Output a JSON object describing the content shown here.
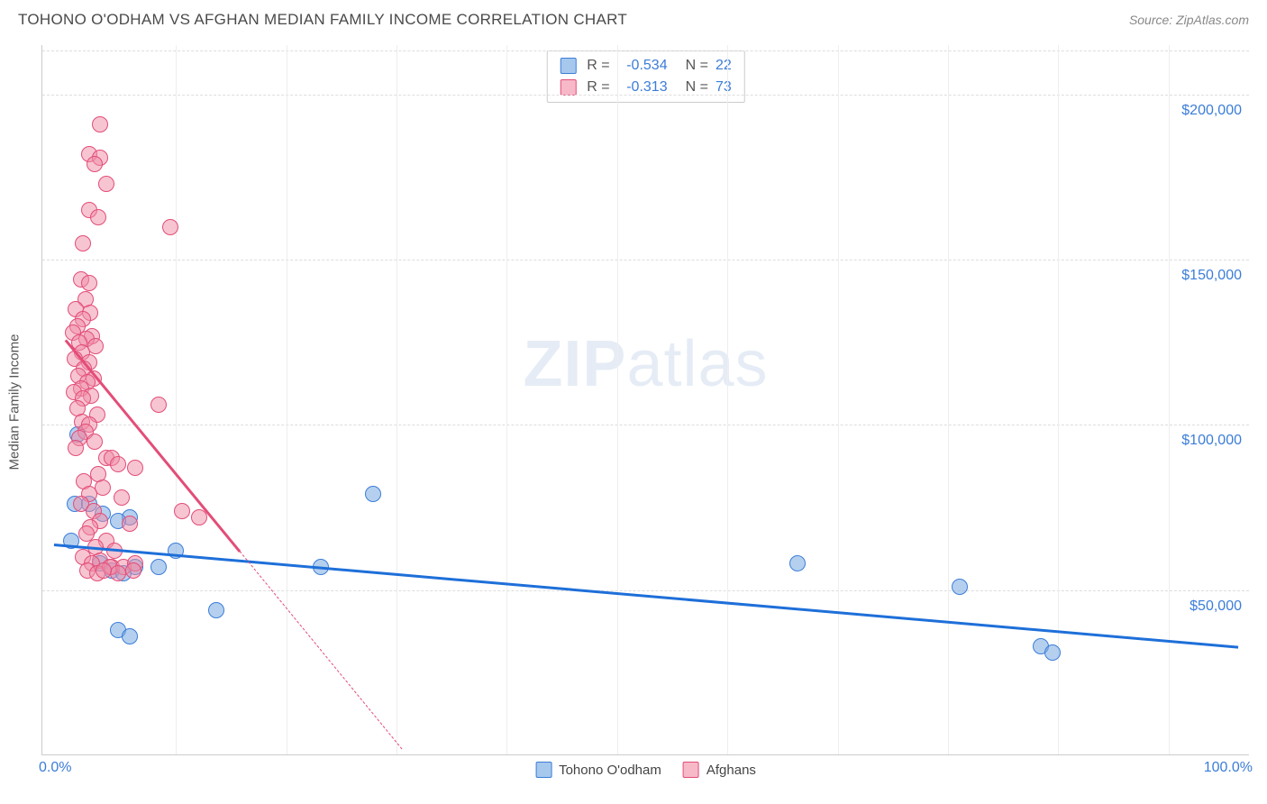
{
  "title": "TOHONO O'ODHAM VS AFGHAN MEDIAN FAMILY INCOME CORRELATION CHART",
  "source": "Source: ZipAtlas.com",
  "watermark": {
    "bold": "ZIP",
    "light": "atlas"
  },
  "axis": {
    "y_title": "Median Family Income",
    "x_min_label": "0.0%",
    "x_max_label": "100.0%",
    "y_ticks": [
      {
        "label": "$50,000",
        "value": 50000
      },
      {
        "label": "$100,000",
        "value": 100000
      },
      {
        "label": "$150,000",
        "value": 150000
      },
      {
        "label": "$200,000",
        "value": 200000
      }
    ],
    "xlim": [
      -2,
      102
    ],
    "ylim": [
      0,
      215000
    ]
  },
  "legend_top": [
    {
      "swatch_fill": "#a6c8ec",
      "swatch_border": "#3b7dd8",
      "r_label": "R =",
      "r_value": "-0.534",
      "n_label": "N =",
      "n_value": "22"
    },
    {
      "swatch_fill": "#f7b8c8",
      "swatch_border": "#e34d78",
      "r_label": "R =",
      "r_value": "-0.313",
      "n_label": "N =",
      "n_value": "73"
    }
  ],
  "legend_bottom": [
    {
      "swatch_fill": "#a6c8ec",
      "swatch_border": "#3b7dd8",
      "label": "Tohono O'odham"
    },
    {
      "swatch_fill": "#f7b8c8",
      "swatch_border": "#e34d78",
      "label": "Afghans"
    }
  ],
  "series": [
    {
      "name": "tohono",
      "point_fill": "rgba(120,170,225,0.55)",
      "point_border": "#3b7dd8",
      "trend_color": "#1e6fd9",
      "trend": {
        "x1": -1,
        "y1": 64000,
        "x2": 101,
        "y2": 33000
      },
      "points": [
        [
          1.0,
          97000
        ],
        [
          0.8,
          76000
        ],
        [
          2.0,
          76000
        ],
        [
          3.2,
          73000
        ],
        [
          5.5,
          72000
        ],
        [
          4.5,
          71000
        ],
        [
          26.5,
          79000
        ],
        [
          0.5,
          65000
        ],
        [
          9.5,
          62000
        ],
        [
          6.0,
          57000
        ],
        [
          8.0,
          57000
        ],
        [
          4.0,
          56000
        ],
        [
          5.0,
          55000
        ],
        [
          22.0,
          57000
        ],
        [
          63.0,
          58000
        ],
        [
          13.0,
          44000
        ],
        [
          4.5,
          38000
        ],
        [
          5.5,
          36000
        ],
        [
          77.0,
          51000
        ],
        [
          84.0,
          33000
        ],
        [
          85.0,
          31000
        ],
        [
          3.0,
          58000
        ]
      ]
    },
    {
      "name": "afghans",
      "point_fill": "rgba(240,140,165,0.5)",
      "point_border": "#e34d78",
      "trend_color": "#e34d78",
      "trend": {
        "x1": 0,
        "y1": 126000,
        "x2": 15,
        "y2": 62000
      },
      "trend_ext": {
        "x1": 15,
        "y1": 62000,
        "x2": 29,
        "y2": 2000
      },
      "points": [
        [
          3.0,
          191000
        ],
        [
          2.0,
          182000
        ],
        [
          3.0,
          181000
        ],
        [
          2.5,
          179000
        ],
        [
          3.5,
          173000
        ],
        [
          2.0,
          165000
        ],
        [
          2.8,
          163000
        ],
        [
          9.0,
          160000
        ],
        [
          1.5,
          155000
        ],
        [
          1.3,
          144000
        ],
        [
          2.0,
          143000
        ],
        [
          1.7,
          138000
        ],
        [
          0.9,
          135000
        ],
        [
          2.1,
          134000
        ],
        [
          1.5,
          132000
        ],
        [
          1.0,
          130000
        ],
        [
          0.6,
          128000
        ],
        [
          2.3,
          127000
        ],
        [
          1.8,
          126000
        ],
        [
          1.2,
          125000
        ],
        [
          2.6,
          124000
        ],
        [
          1.4,
          122000
        ],
        [
          0.8,
          120000
        ],
        [
          2.0,
          119000
        ],
        [
          1.6,
          117000
        ],
        [
          1.1,
          115000
        ],
        [
          2.4,
          114000
        ],
        [
          1.9,
          113000
        ],
        [
          1.3,
          111000
        ],
        [
          0.7,
          110000
        ],
        [
          2.2,
          109000
        ],
        [
          1.5,
          108000
        ],
        [
          8.0,
          106000
        ],
        [
          1.0,
          105000
        ],
        [
          2.7,
          103000
        ],
        [
          1.4,
          101000
        ],
        [
          2.0,
          100000
        ],
        [
          1.7,
          98000
        ],
        [
          1.2,
          96000
        ],
        [
          2.5,
          95000
        ],
        [
          0.9,
          93000
        ],
        [
          3.5,
          90000
        ],
        [
          4.0,
          90000
        ],
        [
          4.5,
          88000
        ],
        [
          6.0,
          87000
        ],
        [
          2.8,
          85000
        ],
        [
          1.6,
          83000
        ],
        [
          3.2,
          81000
        ],
        [
          2.0,
          79000
        ],
        [
          4.8,
          78000
        ],
        [
          1.3,
          76000
        ],
        [
          2.4,
          74000
        ],
        [
          10.0,
          74000
        ],
        [
          11.5,
          72000
        ],
        [
          3.0,
          71000
        ],
        [
          5.5,
          70000
        ],
        [
          2.1,
          69000
        ],
        [
          1.8,
          67000
        ],
        [
          3.5,
          65000
        ],
        [
          2.6,
          63000
        ],
        [
          4.2,
          62000
        ],
        [
          1.5,
          60000
        ],
        [
          3.0,
          59000
        ],
        [
          2.3,
          58000
        ],
        [
          4.0,
          57000
        ],
        [
          1.9,
          56000
        ],
        [
          2.7,
          55000
        ],
        [
          3.8,
          57000
        ],
        [
          5.0,
          57000
        ],
        [
          6.0,
          58000
        ],
        [
          4.5,
          55000
        ],
        [
          3.3,
          56000
        ],
        [
          5.8,
          56000
        ]
      ]
    }
  ],
  "colors": {
    "grid": "#dddddd",
    "axis": "#cccccc",
    "text_blue": "#3b7dd8"
  }
}
